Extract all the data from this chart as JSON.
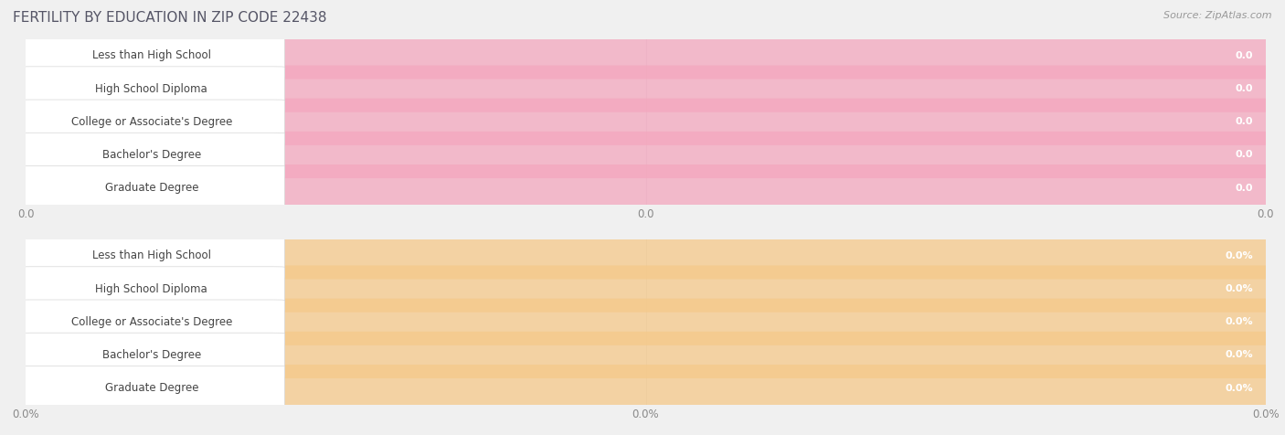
{
  "title": "FERTILITY BY EDUCATION IN ZIP CODE 22438",
  "source": "Source: ZipAtlas.com",
  "categories": [
    "Less than High School",
    "High School Diploma",
    "College or Associate's Degree",
    "Bachelor's Degree",
    "Graduate Degree"
  ],
  "top_values": [
    0.0,
    0.0,
    0.0,
    0.0,
    0.0
  ],
  "bottom_values": [
    0.0,
    0.0,
    0.0,
    0.0,
    0.0
  ],
  "top_bar_color": "#F4A7BE",
  "bottom_bar_color": "#F5C98A",
  "bg_color": "#F0F0F0",
  "row_bg_color": "#FAFAFA",
  "title_color": "#555566",
  "source_color": "#999999",
  "grid_color": "#DDDDDD",
  "label_text_color": "#444444",
  "top_xtick_labels": [
    "0.0",
    "0.0",
    "0.0"
  ],
  "bottom_xtick_labels": [
    "0.0%",
    "0.0%",
    "0.0%"
  ],
  "title_fontsize": 11,
  "source_fontsize": 8,
  "label_fontsize": 8.5,
  "value_fontsize": 8.0,
  "tick_fontsize": 8.5
}
